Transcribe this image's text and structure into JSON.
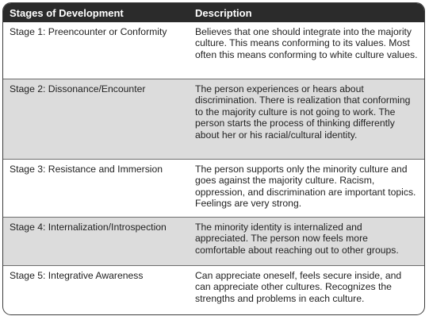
{
  "table": {
    "headers": {
      "stage": "Stages of Development",
      "description": "Description"
    },
    "rows": [
      {
        "stage": "Stage 1:  Preencounter or Conformity",
        "description": "Believes that one should integrate into the majority culture. This means conforming to its values. Most often this means conforming to white culture values."
      },
      {
        "stage": "Stage 2:  Dissonance/Encounter",
        "description": "The person experiences or hears about discrimination. There is realization that conforming to the majority culture is not going to work. The person starts the process of thinking differently about her or his racial/cultural identity."
      },
      {
        "stage": "Stage 3:  Resistance and Immersion",
        "description": "The person supports only the minority culture and goes against the majority culture. Racism, oppression, and discrimination are important topics. Feelings are very strong."
      },
      {
        "stage": "Stage 4:  Internalization/Introspection",
        "description": "The minority identity is internalized and appreciated. The person now feels more comfortable about reaching out to other groups."
      },
      {
        "stage": "Stage 5:  Integrative Awareness",
        "description": "Can appreciate oneself, feels secure inside, and can appreciate other cultures. Recognizes the strengths and problems in each culture."
      }
    ]
  },
  "colors": {
    "header_background": "#2b2b2b",
    "header_text": "#ffffff",
    "shaded_row": "#dcdcdc",
    "border": "#3b3b3b"
  }
}
